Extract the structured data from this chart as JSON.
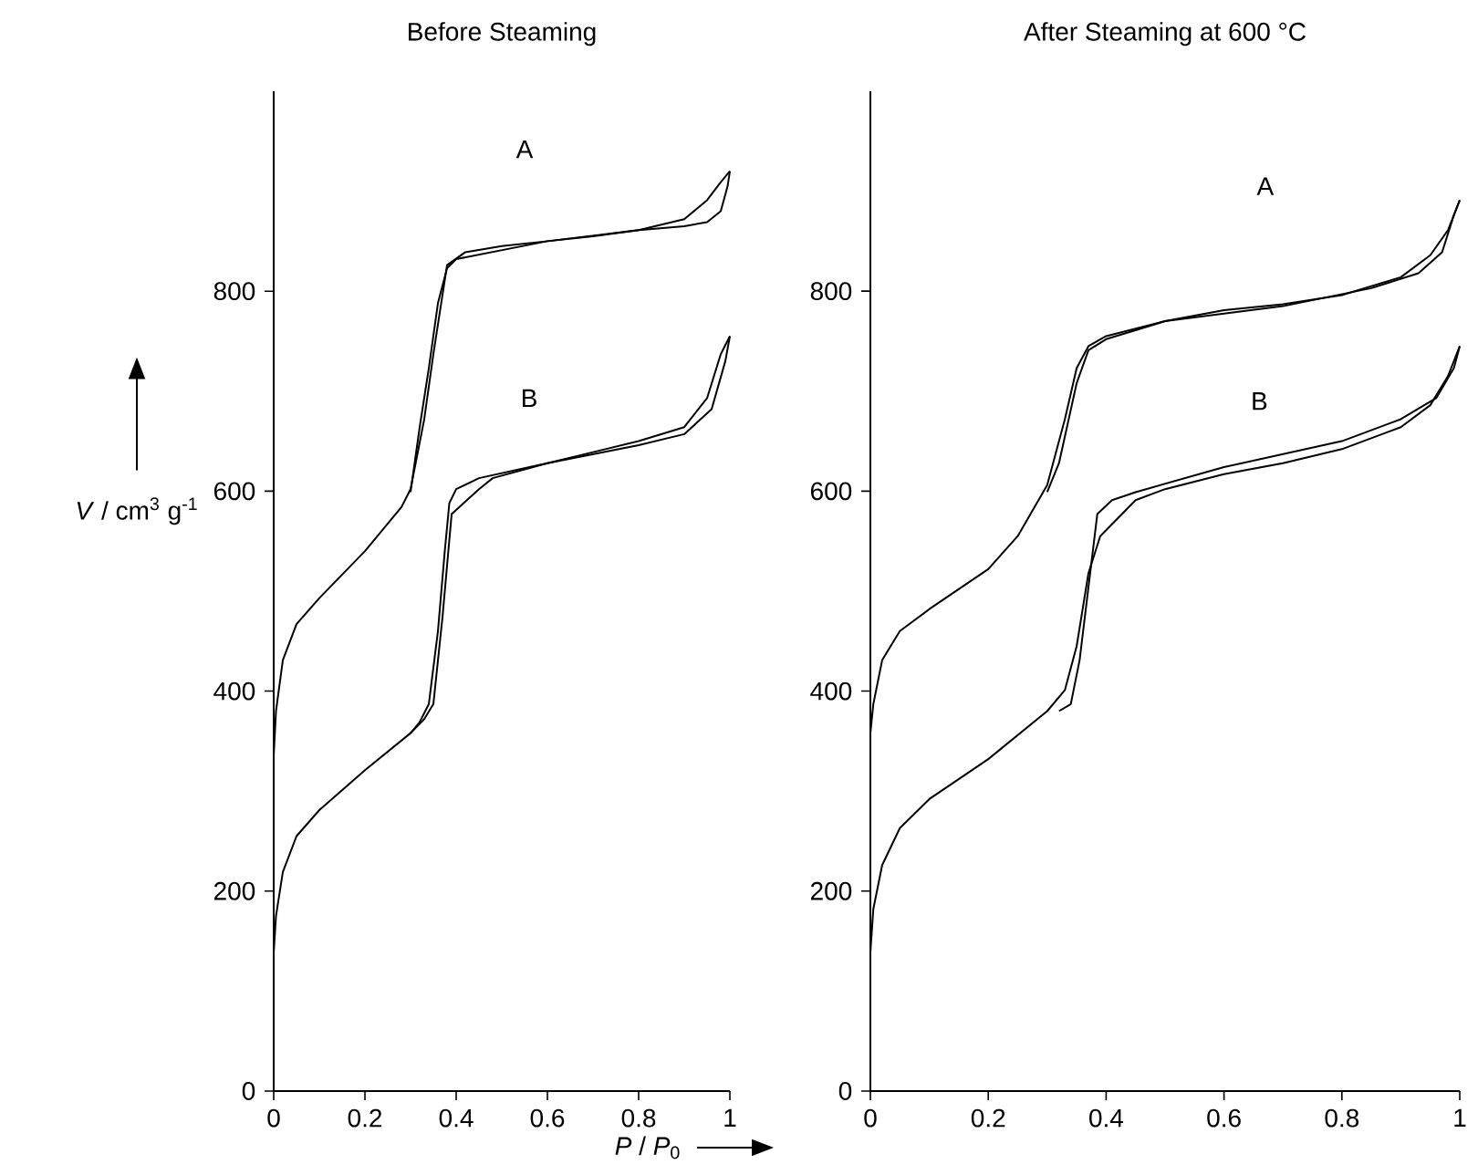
{
  "chart_data": [
    {
      "type": "line",
      "title": "Before Steaming",
      "xlabel": "*P* / *P*$_{0}$",
      "ylabel": "*V* / cm$^{3}$ g$^{-1}$",
      "xlim": [
        0,
        1
      ],
      "ylim": [
        0,
        1000
      ],
      "xticks": [
        0,
        0.2,
        0.4,
        0.6,
        0.8,
        1
      ],
      "yticks": [
        0,
        200,
        400,
        600,
        800
      ],
      "annotations": [
        "A",
        "B"
      ],
      "series": [
        {
          "color": "#000000",
          "x": [
            0,
            0.005,
            0.02,
            0.05,
            0.1,
            0.2,
            0.28,
            0.3,
            0.33,
            0.35,
            0.38,
            0.42,
            0.5,
            0.6,
            0.7,
            0.8,
            0.9,
            0.95,
            0.98,
            1.0
          ],
          "values": [
            336,
            380,
            431,
            467,
            493,
            540,
            584,
            602,
            672,
            737,
            826,
            839,
            845,
            850,
            855,
            861,
            872,
            891,
            909,
            920
          ]
        },
        {
          "color": "#000000",
          "x": [
            1.0,
            0.995,
            0.98,
            0.95,
            0.9,
            0.8,
            0.6,
            0.4,
            0.38,
            0.36,
            0.34,
            0.32,
            0.3
          ],
          "values": [
            920,
            905,
            880,
            869,
            865,
            861,
            850,
            832,
            823,
            788,
            723,
            664,
            599
          ]
        },
        {
          "color": "#000000",
          "x": [
            0,
            0.005,
            0.02,
            0.05,
            0.1,
            0.2,
            0.3,
            0.33,
            0.35,
            0.37,
            0.39,
            0.45,
            0.48,
            0.6,
            0.7,
            0.8,
            0.9,
            0.95,
            0.98,
            1.0
          ],
          "values": [
            139,
            175,
            219,
            255,
            281,
            321,
            358,
            372,
            387,
            474,
            577,
            602,
            613,
            628,
            639,
            650,
            664,
            693,
            737,
            755
          ]
        },
        {
          "color": "#000000",
          "x": [
            1.0,
            0.99,
            0.96,
            0.9,
            0.8,
            0.6,
            0.45,
            0.4,
            0.385,
            0.375,
            0.36,
            0.34,
            0.32,
            0.3
          ],
          "values": [
            755,
            730,
            682,
            657,
            646,
            628,
            613,
            602,
            588,
            540,
            460,
            387,
            369,
            358
          ]
        }
      ]
    },
    {
      "type": "line",
      "title": "After Steaming at 600 °C",
      "xlim": [
        0,
        1
      ],
      "ylim": [
        0,
        1000
      ],
      "xticks": [
        0,
        0.2,
        0.4,
        0.6,
        0.8,
        1
      ],
      "yticks": [
        0,
        200,
        400,
        600,
        800
      ],
      "annotations": [
        "A",
        "B"
      ],
      "series": [
        {
          "color": "#000000",
          "x": [
            0,
            0.005,
            0.02,
            0.05,
            0.1,
            0.2,
            0.25,
            0.3,
            0.33,
            0.35,
            0.37,
            0.4,
            0.5,
            0.6,
            0.7,
            0.8,
            0.9,
            0.95,
            0.98,
            1.0
          ],
          "values": [
            358,
            387,
            431,
            460,
            482,
            522,
            555,
            606,
            672,
            723,
            745,
            755,
            770,
            781,
            787,
            796,
            814,
            836,
            861,
            891
          ]
        },
        {
          "color": "#000000",
          "x": [
            1.0,
            0.99,
            0.97,
            0.93,
            0.85,
            0.7,
            0.5,
            0.4,
            0.37,
            0.35,
            0.32,
            0.3
          ],
          "values": [
            891,
            876,
            839,
            818,
            803,
            785,
            770,
            752,
            741,
            708,
            628,
            599
          ]
        },
        {
          "color": "#000000",
          "x": [
            0,
            0.005,
            0.02,
            0.05,
            0.1,
            0.2,
            0.3,
            0.33,
            0.35,
            0.37,
            0.39,
            0.42,
            0.45,
            0.5,
            0.6,
            0.7,
            0.8,
            0.9,
            0.95,
            0.98,
            1.0
          ],
          "values": [
            139,
            182,
            226,
            263,
            292,
            332,
            380,
            401,
            445,
            518,
            555,
            573,
            591,
            602,
            617,
            628,
            642,
            664,
            686,
            715,
            745
          ]
        },
        {
          "color": "#000000",
          "x": [
            1.0,
            0.99,
            0.96,
            0.9,
            0.8,
            0.6,
            0.45,
            0.41,
            0.385,
            0.37,
            0.355,
            0.34,
            0.32
          ],
          "values": [
            745,
            723,
            693,
            672,
            650,
            624,
            599,
            591,
            577,
            504,
            431,
            387,
            380
          ]
        }
      ]
    }
  ]
}
